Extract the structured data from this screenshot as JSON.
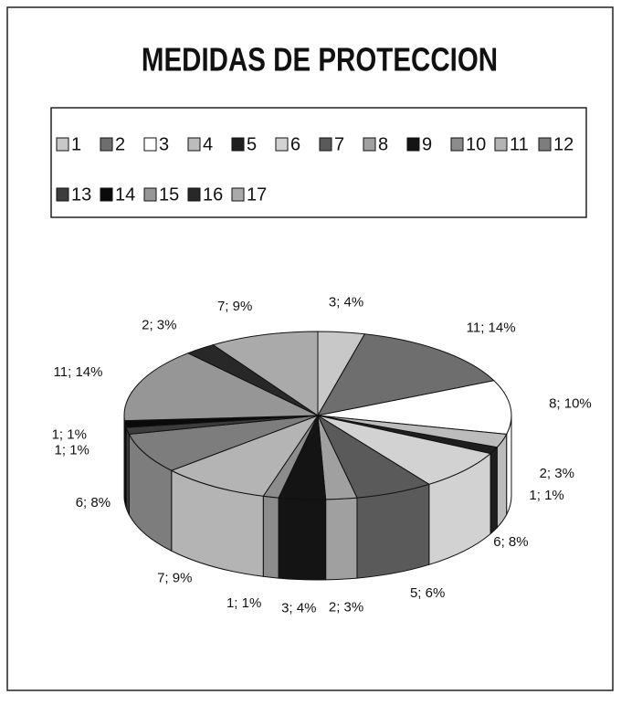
{
  "chart_data": {
    "type": "pie",
    "title": "MEDIDAS DE PROTECCION",
    "categories": [
      "1",
      "2",
      "3",
      "4",
      "5",
      "6",
      "7",
      "8",
      "9",
      "10",
      "11",
      "12",
      "13",
      "14",
      "15",
      "16",
      "17"
    ],
    "values": [
      3,
      11,
      8,
      2,
      1,
      6,
      5,
      2,
      3,
      1,
      7,
      6,
      1,
      1,
      11,
      2,
      7
    ],
    "value_labels": [
      "3; 4%",
      "11; 14%",
      "8; 10%",
      "2; 3%",
      "1; 1%",
      "6; 8%",
      "5; 6%",
      "2; 3%",
      "3; 4%",
      "1; 1%",
      "7; 9%",
      "6; 8%",
      "1; 1%",
      "1; 1%",
      "11; 14%",
      "2; 3%",
      "7; 9%"
    ],
    "colors": [
      "#c8c8c8",
      "#6e6e6e",
      "#ffffff",
      "#bcbcbc",
      "#1e1e1e",
      "#d2d2d2",
      "#5a5a5a",
      "#a0a0a0",
      "#141414",
      "#8c8c8c",
      "#b4b4b4",
      "#7d7d7d",
      "#3c3c3c",
      "#0a0a0a",
      "#969696",
      "#282828",
      "#aaaaaa"
    ],
    "legend": "top"
  }
}
